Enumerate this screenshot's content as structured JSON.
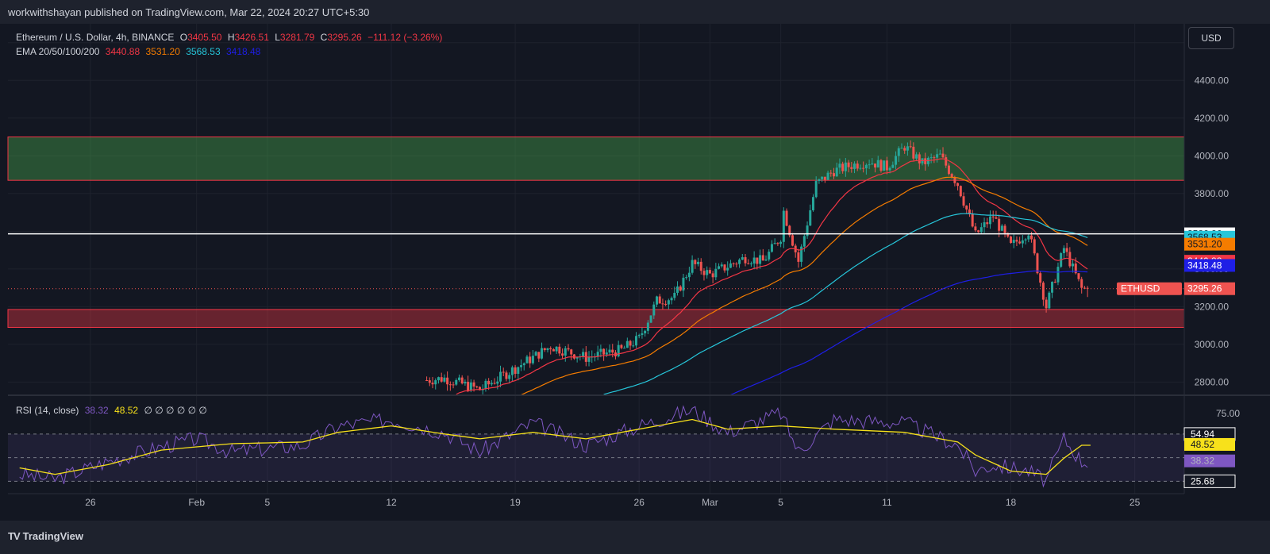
{
  "header": {
    "publisher": "workwithshayan published on TradingView.com, Mar 22, 2024 20:27 UTC+5:30"
  },
  "legend": {
    "symbol": "Ethereum / U.S. Dollar, 4h, BINANCE",
    "o_label": "O",
    "o": "3405.50",
    "h_label": "H",
    "h": "3426.51",
    "l_label": "L",
    "l": "3281.79",
    "c_label": "C",
    "c": "3295.26",
    "change": "−111.12 (−3.26%)",
    "ema_label": "EMA 20/50/100/200",
    "ema20": "3440.88",
    "ema50": "3531.20",
    "ema100": "3568.53",
    "ema200": "3418.48"
  },
  "rsi_legend": {
    "label": "RSI (14, close)",
    "rsi": "38.32",
    "ma": "48.52",
    "extra": "∅ ∅ ∅ ∅ ∅ ∅"
  },
  "currency": "USD",
  "footer": {
    "brand": "TradingView",
    "logo_mark": "TV"
  },
  "colors": {
    "background": "#131722",
    "up": "#26a69a",
    "down": "#ef5350",
    "ema20": "#f23645",
    "ema50": "#f57c00",
    "ema100": "#26c6da",
    "ema200": "#1e1ee6",
    "rsi": "#7e57c2",
    "rsi_ma": "#f7e11b"
  },
  "chart_data": {
    "type": "candlestick",
    "x_ticks": [
      "26",
      "Feb",
      "5",
      "12",
      "19",
      "26",
      "Mar",
      "5",
      "11",
      "18",
      "25"
    ],
    "y_ticks": [
      "2800.00",
      "3000.00",
      "3200.00",
      "3400.00",
      "3600.00",
      "3800.00",
      "4000.00",
      "4200.00",
      "4400.00",
      "4600.00"
    ],
    "ylim": [
      2730,
      4700
    ],
    "price_key_points": [
      [
        "Jan 22",
        2600
      ],
      [
        "Jan 26",
        2620
      ],
      [
        "Feb 1",
        2650
      ],
      [
        "Feb 5",
        2680
      ],
      [
        "Feb 8",
        2700
      ],
      [
        "Feb 13",
        2800
      ],
      [
        "Feb 15",
        2820
      ],
      [
        "Feb 17",
        2760
      ],
      [
        "Feb 20",
        2930
      ],
      [
        "Feb 21",
        2990
      ],
      [
        "Feb 23",
        2930
      ],
      [
        "Feb 25",
        2970
      ],
      [
        "Feb 26",
        3030
      ],
      [
        "Feb 27",
        3230
      ],
      [
        "Feb 28",
        3250
      ],
      [
        "Feb 29",
        3430
      ],
      [
        "Mar 1",
        3370
      ],
      [
        "Mar 3",
        3460
      ],
      [
        "Mar 4",
        3440
      ],
      [
        "Mar 5",
        3570
      ],
      [
        "Mar 5",
        3760
      ],
      [
        "Mar 6",
        3440
      ],
      [
        "Mar 7",
        3850
      ],
      [
        "Mar 8",
        3920
      ],
      [
        "Mar 9",
        3950
      ],
      [
        "Mar 10",
        3970
      ],
      [
        "Mar 11",
        3940
      ],
      [
        "Mar 12",
        4050
      ],
      [
        "Mar 13",
        3960
      ],
      [
        "Mar 14",
        4000
      ],
      [
        "Mar 15",
        3850
      ],
      [
        "Mar 16",
        3580
      ],
      [
        "Mar 17",
        3680
      ],
      [
        "Mar 18",
        3520
      ],
      [
        "Mar 19",
        3600
      ],
      [
        "Mar 20",
        3200
      ],
      [
        "Mar 21",
        3510
      ],
      [
        "Mar 22",
        3295
      ]
    ],
    "ema_series": [
      {
        "name": "EMA 20",
        "last": 3440.88
      },
      {
        "name": "EMA 50",
        "last": 3531.2
      },
      {
        "name": "EMA 100",
        "last": 3568.53
      },
      {
        "name": "EMA 200",
        "last": 3418.48
      }
    ],
    "zones": [
      {
        "type": "resistance",
        "from": 3870,
        "to": 4100,
        "color": "#4caf50"
      },
      {
        "type": "support",
        "from": 3090,
        "to": 3185,
        "color": "#f23645"
      }
    ],
    "horizontal_line": 3586.26,
    "last_price": {
      "symbol": "ETHUSD",
      "value": 3295.26
    },
    "price_labels": [
      {
        "value": "3586.26",
        "color": "#ffffff",
        "text_color": "#131722"
      },
      {
        "value": "3568.53",
        "color": "#26c6da",
        "text_color": "#131722"
      },
      {
        "value": "3531.20",
        "color": "#f57c00",
        "text_color": "#131722"
      },
      {
        "value": "3440.88",
        "color": "#f23645",
        "text_color": "#ffffff"
      },
      {
        "value": "3418.48",
        "color": "#1e1ee6",
        "text_color": "#ffffff"
      }
    ],
    "rsi": {
      "levels": [
        "75.00",
        "54.94",
        "48.52",
        "38.32",
        "25.68"
      ],
      "level_colors": [
        "transparent",
        "#131722",
        "#f7e11b",
        "#7e57c2",
        "#131722"
      ],
      "bands": [
        25.68,
        54.94
      ],
      "ylim": [
        18,
        78
      ],
      "rsi_key_points": [
        [
          "Jan 22",
          30
        ],
        [
          "Jan 24",
          27
        ],
        [
          "Jan 27",
          38
        ],
        [
          "Jan 30",
          47
        ],
        [
          "Feb 1",
          52
        ],
        [
          "Feb 3",
          44
        ],
        [
          "Feb 7",
          48
        ],
        [
          "Feb 9",
          60
        ],
        [
          "Feb 12",
          64
        ],
        [
          "Feb 15",
          56
        ],
        [
          "Feb 17",
          44
        ],
        [
          "Feb 20",
          62
        ],
        [
          "Feb 23",
          48
        ],
        [
          "Feb 26",
          60
        ],
        [
          "Feb 29",
          70
        ],
        [
          "Mar 2",
          56
        ],
        [
          "Mar 5",
          68
        ],
        [
          "Mar 6",
          44
        ],
        [
          "Mar 8",
          64
        ],
        [
          "Mar 12",
          62
        ],
        [
          "Mar 15",
          48
        ],
        [
          "Mar 16",
          32
        ],
        [
          "Mar 17",
          36
        ],
        [
          "Mar 19",
          32
        ],
        [
          "Mar 20",
          26
        ],
        [
          "Mar 21",
          52
        ],
        [
          "Mar 22",
          38
        ]
      ],
      "ma_key_points": [
        [
          "Jan 22",
          34
        ],
        [
          "Jan 24",
          30
        ],
        [
          "Jan 27",
          36
        ],
        [
          "Jan 30",
          45
        ],
        [
          "Feb 3",
          49
        ],
        [
          "Feb 7",
          50
        ],
        [
          "Feb 9",
          56
        ],
        [
          "Feb 12",
          60
        ],
        [
          "Feb 15",
          55
        ],
        [
          "Feb 17",
          52
        ],
        [
          "Feb 20",
          56
        ],
        [
          "Feb 23",
          52
        ],
        [
          "Feb 26",
          58
        ],
        [
          "Feb 29",
          64
        ],
        [
          "Mar 2",
          58
        ],
        [
          "Mar 5",
          60
        ],
        [
          "Mar 8",
          58
        ],
        [
          "Mar 12",
          56
        ],
        [
          "Mar 15",
          50
        ],
        [
          "Mar 16",
          42
        ],
        [
          "Mar 18",
          32
        ],
        [
          "Mar 20",
          30
        ],
        [
          "Mar 21",
          40
        ],
        [
          "Mar 22",
          48
        ]
      ]
    }
  }
}
